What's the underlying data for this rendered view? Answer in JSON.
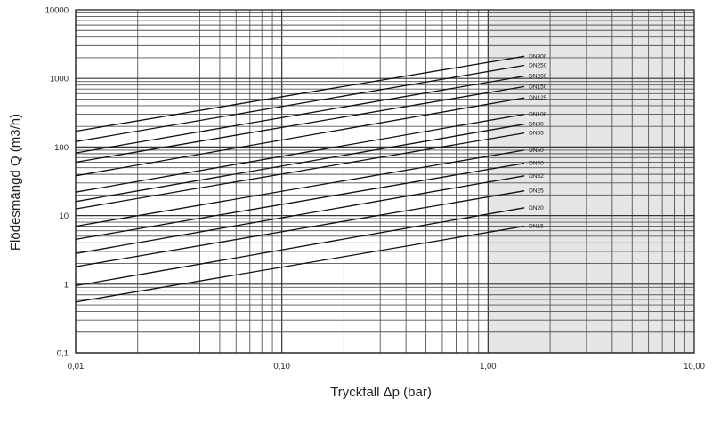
{
  "chart_data": {
    "type": "line",
    "title": "",
    "xlabel": "Tryckfall Δp (bar)",
    "ylabel": "Flödesmängd Q (m3/h)",
    "x_scale": "log",
    "y_scale": "log",
    "xlim": [
      0.01,
      10
    ],
    "ylim": [
      0.1,
      10000
    ],
    "x_tick_labels": [
      "0,01",
      "0,10",
      "1,00",
      "10,00"
    ],
    "y_tick_labels": [
      "0,1",
      "1",
      "10",
      "100",
      "1000",
      "10000"
    ],
    "grid": true,
    "shaded_region_x": [
      1,
      10
    ],
    "series": [
      {
        "name": "DN300",
        "x": [
          0.01,
          1.5
        ],
        "y": [
          170,
          2100
        ]
      },
      {
        "name": "DN250",
        "x": [
          0.01,
          1.5
        ],
        "y": [
          120,
          1550
        ]
      },
      {
        "name": "DN200",
        "x": [
          0.01,
          1.5
        ],
        "y": [
          82,
          1080
        ]
      },
      {
        "name": "DN150",
        "x": [
          0.01,
          1.5
        ],
        "y": [
          60,
          760
        ]
      },
      {
        "name": "DN125",
        "x": [
          0.01,
          1.5
        ],
        "y": [
          38,
          520
        ]
      },
      {
        "name": "DN100",
        "x": [
          0.01,
          1.5
        ],
        "y": [
          22,
          300
        ]
      },
      {
        "name": "DN80",
        "x": [
          0.01,
          1.5
        ],
        "y": [
          16,
          215
        ]
      },
      {
        "name": "DN65",
        "x": [
          0.01,
          1.5
        ],
        "y": [
          12.5,
          160
        ]
      },
      {
        "name": "DN50",
        "x": [
          0.01,
          1.5
        ],
        "y": [
          7,
          90
        ]
      },
      {
        "name": "DN40",
        "x": [
          0.01,
          1.5
        ],
        "y": [
          4.5,
          58
        ]
      },
      {
        "name": "DN32",
        "x": [
          0.01,
          1.5
        ],
        "y": [
          2.8,
          38
        ]
      },
      {
        "name": "DN25",
        "x": [
          0.01,
          1.5
        ],
        "y": [
          1.8,
          23
        ]
      },
      {
        "name": "DN20",
        "x": [
          0.01,
          1.5
        ],
        "y": [
          0.95,
          13
        ]
      },
      {
        "name": "DN15",
        "x": [
          0.01,
          1.5
        ],
        "y": [
          0.55,
          7
        ]
      }
    ]
  }
}
